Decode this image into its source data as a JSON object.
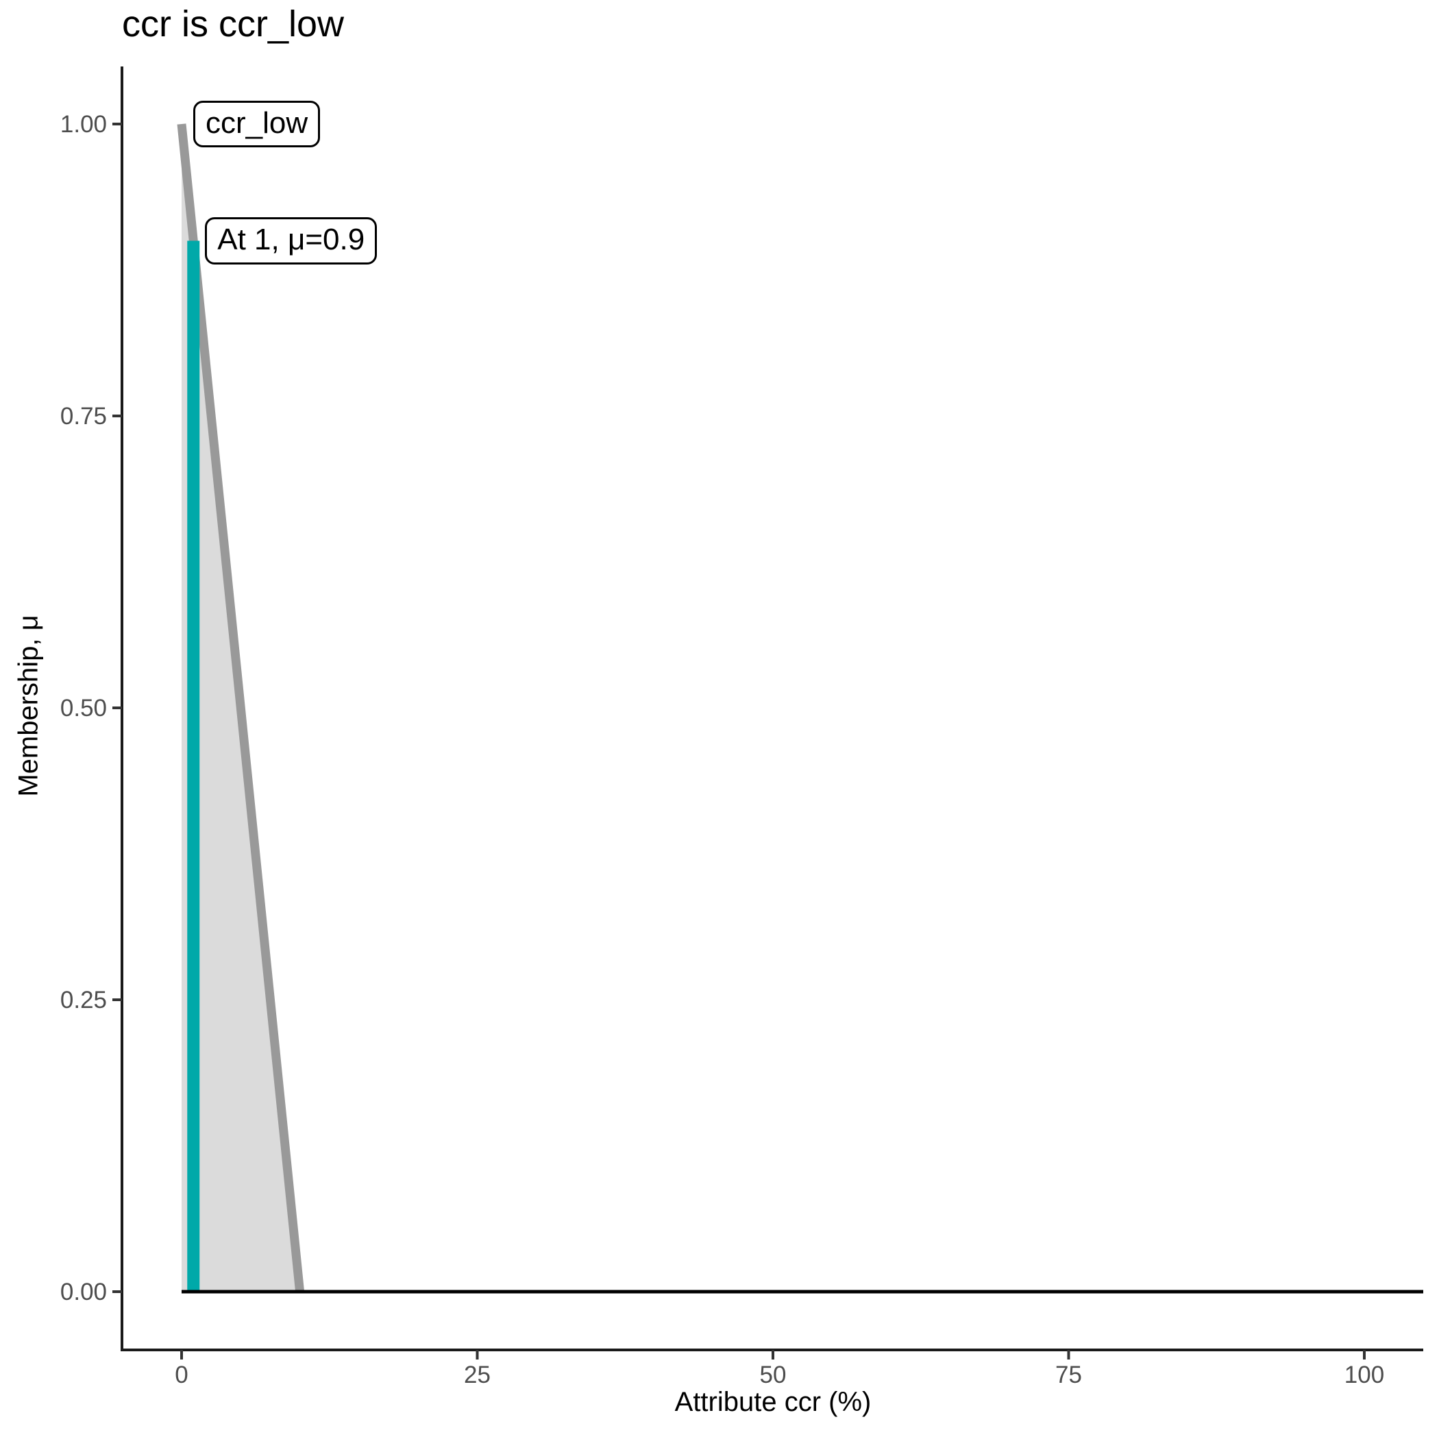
{
  "chart_data": {
    "type": "area",
    "title": "ccr is ccr_low",
    "xlabel": "Attribute ccr (%)",
    "ylabel": "Membership, μ",
    "xlim": [
      0,
      100
    ],
    "ylim": [
      0,
      1
    ],
    "x_ticks": [
      0,
      25,
      50,
      75,
      100
    ],
    "x_tick_labels": [
      "0",
      "25",
      "50",
      "75",
      "100"
    ],
    "y_ticks": [
      0.0,
      0.25,
      0.5,
      0.75,
      1.0
    ],
    "y_tick_labels": [
      "0.00",
      "0.25",
      "0.50",
      "0.75",
      "1.00"
    ],
    "grid": false,
    "legend": false,
    "series": [
      {
        "name": "ccr_low membership function",
        "points": [
          [
            0,
            1
          ],
          [
            10,
            0
          ]
        ],
        "line_color": "#999999",
        "fill_color": "#dbdbdb"
      },
      {
        "name": "zero membership baseline",
        "points": [
          [
            0,
            0
          ],
          [
            100,
            0
          ]
        ],
        "line_color": "#000000"
      }
    ],
    "indicator": {
      "x": 1,
      "mu": 0.9,
      "color": "#00a9a9"
    },
    "annotations": [
      {
        "text": "ccr_low",
        "anchor_x": 0,
        "anchor_mu": 1.0
      },
      {
        "text": "At 1, μ=0.9",
        "anchor_x": 1,
        "anchor_mu": 0.9
      }
    ],
    "colors": {
      "axis_line": "#1a1a1a",
      "tick_mark": "#333333",
      "tick_text": "#4d4d4d",
      "text": "#000000"
    }
  }
}
